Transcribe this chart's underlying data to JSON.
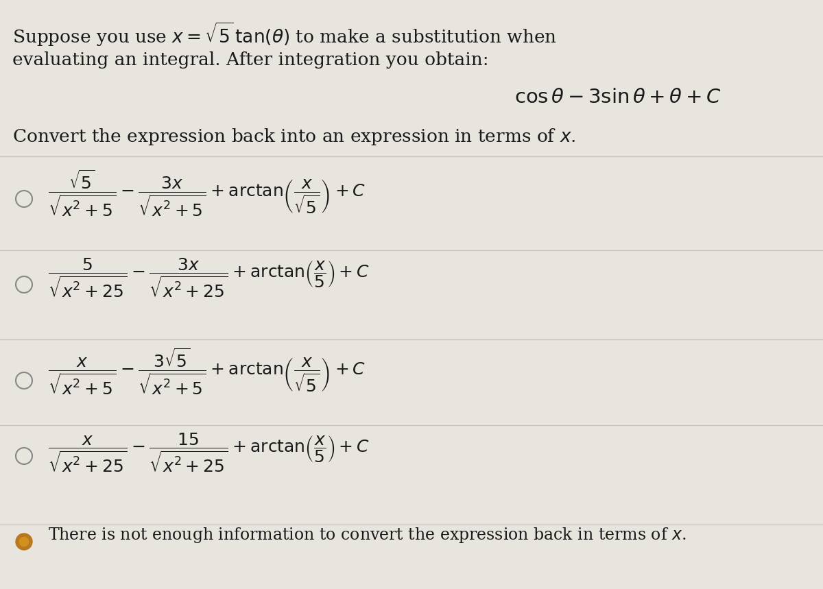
{
  "bg_color": "#e8e4de",
  "text_color": "#1a1a1a",
  "title_line1": "Suppose you use $x = \\sqrt{5}\\,\\tan(\\theta)$ to make a substitution when",
  "title_line2": "evaluating an integral. After integration you obtain:",
  "expression": "$\\cos\\theta - 3\\sin\\theta + \\theta + C$",
  "convert_line": "Convert the expression back into an expression in terms of $x$.",
  "options": [
    {
      "formula": "$\\dfrac{\\sqrt{5}}{\\sqrt{x^2+5}} - \\dfrac{3x}{\\sqrt{x^2+5}} + \\arctan\\!\\left(\\dfrac{x}{\\sqrt{5}}\\right) + C$",
      "selected": false
    },
    {
      "formula": "$\\dfrac{5}{\\sqrt{x^2+25}} - \\dfrac{3x}{\\sqrt{x^2+25}} + \\arctan\\!\\left(\\dfrac{x}{5}\\right) + C$",
      "selected": false
    },
    {
      "formula": "$\\dfrac{x}{\\sqrt{x^2+5}} - \\dfrac{3\\sqrt{5}}{\\sqrt{x^2+5}} + \\arctan\\!\\left(\\dfrac{x}{\\sqrt{5}}\\right) + C$",
      "selected": false
    },
    {
      "formula": "$\\dfrac{x}{\\sqrt{x^2+25}} - \\dfrac{15}{\\sqrt{x^2+25}} + \\arctan\\!\\left(\\dfrac{x}{5}\\right) + C$",
      "selected": false
    },
    {
      "formula": "There is not enough information to convert the expression back in terms of $x$.",
      "selected": true
    }
  ],
  "separator_color": "#c8c4be",
  "circle_color_empty": "#888888",
  "circle_color_filled_outer": "#b87820",
  "circle_color_filled_inner": "#d4901e",
  "figwidth": 12.0,
  "figheight": 8.59,
  "dpi": 100,
  "title_fontsize": 19,
  "formula_fontsize": 18,
  "last_option_fontsize": 17
}
